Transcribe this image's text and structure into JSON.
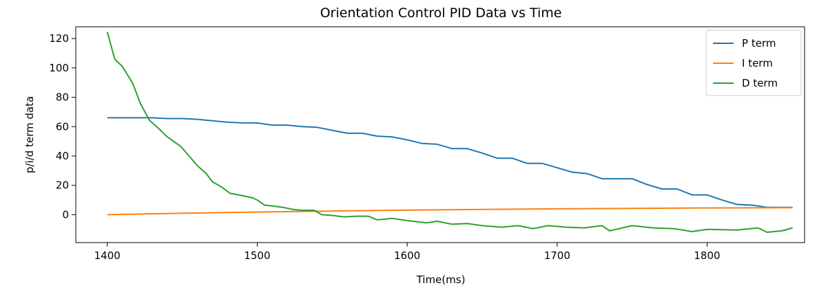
{
  "chart_data": {
    "type": "line",
    "title": "Orientation Control PID Data vs Time",
    "xlabel": "Time(ms)",
    "ylabel": "p/i/d term data",
    "xlim": [
      1379,
      1865
    ],
    "ylim": [
      -19,
      128
    ],
    "xticks": [
      1400,
      1500,
      1600,
      1700,
      1800
    ],
    "yticks": [
      0,
      20,
      40,
      60,
      80,
      100,
      120
    ],
    "grid": false,
    "legend_position": "top-right",
    "series": [
      {
        "name": "P term",
        "color": "#1f77b4",
        "x": [
          1400,
          1410,
          1420,
          1430,
          1440,
          1450,
          1460,
          1470,
          1480,
          1490,
          1500,
          1510,
          1520,
          1530,
          1540,
          1550,
          1560,
          1570,
          1580,
          1590,
          1600,
          1610,
          1620,
          1630,
          1640,
          1650,
          1660,
          1670,
          1680,
          1690,
          1700,
          1710,
          1720,
          1730,
          1740,
          1750,
          1760,
          1770,
          1780,
          1790,
          1800,
          1810,
          1820,
          1830,
          1840,
          1857
        ],
        "values": [
          66,
          66,
          66,
          66,
          65.5,
          65.5,
          65,
          64,
          63,
          62.5,
          62.5,
          61,
          61,
          60,
          59.5,
          57.5,
          55.5,
          55.5,
          53.5,
          53,
          51,
          48.5,
          48,
          45,
          45,
          42,
          38.5,
          38.5,
          35,
          35,
          32,
          29,
          28,
          24.5,
          24.5,
          24.5,
          20.5,
          17.5,
          17.5,
          13.5,
          13.5,
          10,
          7,
          6.5,
          5,
          5
        ]
      },
      {
        "name": "I term",
        "color": "#ff7f0e",
        "x": [
          1400,
          1450,
          1500,
          1550,
          1600,
          1650,
          1700,
          1750,
          1800,
          1857
        ],
        "values": [
          0,
          1,
          1.8,
          2.5,
          3.1,
          3.6,
          4.0,
          4.3,
          4.6,
          4.8
        ]
      },
      {
        "name": "D term",
        "color": "#2ca02c",
        "x": [
          1400,
          1405,
          1410,
          1417,
          1422,
          1428,
          1434,
          1440,
          1449,
          1455,
          1460,
          1466,
          1470,
          1476,
          1482,
          1490,
          1497,
          1500,
          1505,
          1510,
          1517,
          1524,
          1530,
          1538,
          1543,
          1550,
          1558,
          1566,
          1574,
          1580,
          1590,
          1600,
          1613,
          1620,
          1630,
          1640,
          1650,
          1663,
          1674,
          1684,
          1694,
          1706,
          1718,
          1730,
          1735,
          1750,
          1764,
          1778,
          1790,
          1800,
          1820,
          1834,
          1840,
          1850,
          1857
        ],
        "values": [
          124.5,
          106,
          101,
          89.5,
          76,
          64.5,
          59,
          53,
          46.5,
          39.5,
          33.5,
          28,
          22.5,
          19,
          14.5,
          13,
          11.5,
          10,
          6.5,
          6,
          5,
          3.5,
          3,
          3,
          0,
          -0.5,
          -1.5,
          -1,
          -1,
          -3.5,
          -2.5,
          -4,
          -5.5,
          -4.5,
          -6.5,
          -6,
          -7.5,
          -8.5,
          -7.5,
          -9.5,
          -7.5,
          -8.5,
          -9,
          -7.5,
          -11,
          -7.5,
          -9,
          -9.5,
          -11.5,
          -10,
          -10.5,
          -9,
          -12,
          -11,
          -9
        ]
      }
    ]
  }
}
